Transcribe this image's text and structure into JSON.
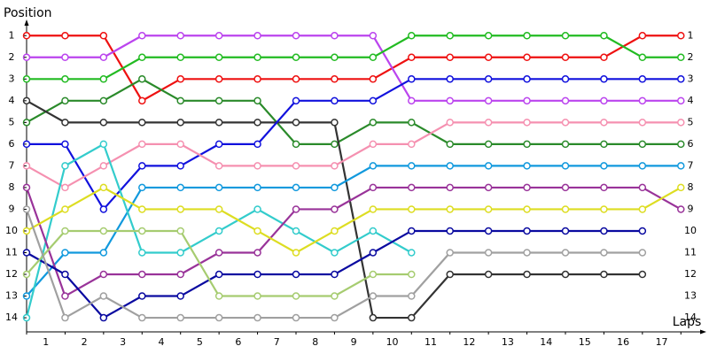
{
  "chart_data": {
    "type": "line",
    "y_label": "Position",
    "x_label": "Laps",
    "x": [
      0,
      1,
      2,
      3,
      4,
      5,
      6,
      7,
      8,
      9,
      10,
      11,
      12,
      13,
      14,
      15,
      16,
      17
    ],
    "xlim": [
      0,
      17.5
    ],
    "xticks": [
      {
        "value": 0.5,
        "label": "1"
      },
      {
        "value": 1.5,
        "label": "2"
      },
      {
        "value": 2.5,
        "label": "3"
      },
      {
        "value": 3.5,
        "label": "4"
      },
      {
        "value": 4.5,
        "label": "5"
      },
      {
        "value": 5.5,
        "label": "6"
      },
      {
        "value": 6.5,
        "label": "7"
      },
      {
        "value": 7.5,
        "label": "8"
      },
      {
        "value": 8.5,
        "label": "9"
      },
      {
        "value": 9.5,
        "label": "10"
      },
      {
        "value": 10.5,
        "label": "11"
      },
      {
        "value": 11.5,
        "label": "12"
      },
      {
        "value": 12.5,
        "label": "13"
      },
      {
        "value": 13.5,
        "label": "14"
      },
      {
        "value": 14.5,
        "label": "15"
      },
      {
        "value": 15.5,
        "label": "16"
      },
      {
        "value": 16.5,
        "label": "17"
      }
    ],
    "ylim": [
      14.65,
      0.5
    ],
    "yticks": [
      1,
      2,
      3,
      4,
      5,
      6,
      7,
      8,
      9,
      10,
      11,
      12,
      13,
      14
    ],
    "series": [
      {
        "color": "#ee1111",
        "values": [
          1,
          1,
          1,
          4,
          3,
          3,
          3,
          3,
          3,
          3,
          2,
          2,
          2,
          2,
          2,
          2,
          1,
          1
        ]
      },
      {
        "color": "#bb44ee",
        "values": [
          2,
          2,
          2,
          1,
          1,
          1,
          1,
          1,
          1,
          1,
          4,
          4,
          4,
          4,
          4,
          4,
          4,
          4
        ]
      },
      {
        "color": "#22bb22",
        "values": [
          3,
          3,
          3,
          2,
          2,
          2,
          2,
          2,
          2,
          2,
          1,
          1,
          1,
          1,
          1,
          1,
          2,
          2
        ]
      },
      {
        "color": "#2a8a2a",
        "values": [
          5,
          4,
          4,
          3,
          4,
          4,
          4,
          6,
          6,
          5,
          5,
          6,
          6,
          6,
          6,
          6,
          6,
          6
        ]
      },
      {
        "color": "#333333",
        "values": [
          4,
          5,
          5,
          5,
          5,
          5,
          5,
          5,
          5,
          14,
          14,
          12,
          12,
          12,
          12,
          12,
          12,
          null
        ]
      },
      {
        "color": "#1111dd",
        "values": [
          6,
          6,
          9,
          7,
          7,
          6,
          6,
          4,
          4,
          4,
          3,
          3,
          3,
          3,
          3,
          3,
          3,
          3
        ]
      },
      {
        "color": "#f590b0",
        "values": [
          7,
          8,
          7,
          6,
          6,
          7,
          7,
          7,
          7,
          6,
          6,
          5,
          5,
          5,
          5,
          5,
          5,
          5
        ]
      },
      {
        "color": "#1199dd",
        "values": [
          13,
          11,
          11,
          8,
          8,
          8,
          8,
          8,
          8,
          7,
          7,
          7,
          7,
          7,
          7,
          7,
          7,
          7
        ]
      },
      {
        "color": "#33cccc",
        "values": [
          14,
          7,
          6,
          11,
          11,
          10,
          9,
          10,
          11,
          10,
          11,
          null,
          null,
          null,
          null,
          null,
          null,
          null
        ]
      },
      {
        "color": "#993399",
        "values": [
          8,
          13,
          12,
          12,
          12,
          11,
          11,
          9,
          9,
          8,
          8,
          8,
          8,
          8,
          8,
          8,
          8,
          9
        ]
      },
      {
        "color": "#dddd22",
        "values": [
          10,
          9,
          8,
          9,
          9,
          9,
          10,
          11,
          10,
          9,
          9,
          9,
          9,
          9,
          9,
          9,
          9,
          8
        ]
      },
      {
        "color": "#0a0aa0",
        "values": [
          11,
          12,
          14,
          13,
          13,
          12,
          12,
          12,
          12,
          11,
          10,
          10,
          10,
          10,
          10,
          10,
          10,
          null
        ]
      },
      {
        "color": "#a6cc70",
        "values": [
          12,
          10,
          10,
          10,
          10,
          13,
          13,
          13,
          13,
          12,
          12,
          null,
          null,
          null,
          null,
          null,
          null,
          null
        ]
      },
      {
        "color": "#a0a0a0",
        "values": [
          9,
          14,
          13,
          14,
          14,
          14,
          14,
          14,
          14,
          13,
          13,
          11,
          11,
          11,
          11,
          11,
          11,
          null
        ]
      }
    ]
  }
}
